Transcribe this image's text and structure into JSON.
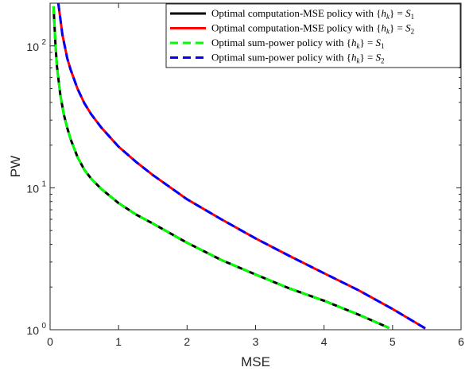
{
  "chart_data": {
    "type": "line",
    "xlabel": "MSE",
    "ylabel": "PW",
    "xlim": [
      0,
      6
    ],
    "ylim": [
      1,
      200
    ],
    "y_scale": "log",
    "grid": false,
    "legend_position": "top-right",
    "x_ticks": [
      0,
      1,
      2,
      3,
      4,
      5,
      6
    ],
    "x_tick_labels": [
      "0",
      "1",
      "2",
      "3",
      "4",
      "5",
      "6"
    ],
    "y_ticks": [
      1,
      10,
      100
    ],
    "y_tick_labels": [
      "10",
      "10",
      "10"
    ],
    "y_tick_exponents": [
      "0",
      "1",
      "2"
    ],
    "series": [
      {
        "name": "Optimal computation-MSE policy with {h_k} = S_1",
        "legend_prefix": "Optimal computation-MSE policy with {",
        "legend_var": "h",
        "legend_sub": "k",
        "legend_mid": "} = ",
        "legend_set": "S",
        "legend_set_sub": "1",
        "color": "#000000",
        "dash": "solid",
        "x": [
          0.05,
          0.08,
          0.1,
          0.15,
          0.2,
          0.25,
          0.3,
          0.4,
          0.5,
          0.6,
          0.75,
          1.0,
          1.25,
          1.5,
          2.0,
          2.5,
          3.0,
          3.5,
          4.0,
          4.5,
          4.95
        ],
        "y": [
          190,
          100,
          72,
          45,
          33,
          26.5,
          22,
          16.5,
          13.4,
          11.6,
          9.8,
          7.8,
          6.5,
          5.6,
          4.1,
          3.1,
          2.45,
          1.95,
          1.6,
          1.28,
          1.03
        ]
      },
      {
        "name": "Optimal computation-MSE policy with {h_k} = S_2",
        "legend_prefix": "Optimal computation-MSE policy with {",
        "legend_var": "h",
        "legend_sub": "k",
        "legend_mid": "} = ",
        "legend_set": "S",
        "legend_set_sub": "2",
        "color": "#ff0000",
        "dash": "solid",
        "x": [
          0.12,
          0.18,
          0.25,
          0.3,
          0.4,
          0.5,
          0.6,
          0.75,
          1.0,
          1.25,
          1.5,
          2.0,
          2.5,
          3.0,
          3.5,
          4.0,
          4.5,
          5.0,
          5.48
        ],
        "y": [
          200,
          120,
          82,
          68,
          50,
          39.5,
          33,
          26.5,
          19.5,
          15.3,
          12.3,
          8.3,
          6.0,
          4.4,
          3.3,
          2.5,
          1.9,
          1.4,
          1.02
        ]
      },
      {
        "name": "Optimal sum-power policy with {h_k} = S_1",
        "legend_prefix": "Optimal sum-power policy with {",
        "legend_var": "h",
        "legend_sub": "k",
        "legend_mid": "} = ",
        "legend_set": "S",
        "legend_set_sub": "1",
        "color": "#00ff00",
        "dash": "dashed",
        "x": [
          0.05,
          0.08,
          0.1,
          0.15,
          0.2,
          0.25,
          0.3,
          0.4,
          0.5,
          0.6,
          0.75,
          1.0,
          1.25,
          1.5,
          2.0,
          2.5,
          3.0,
          3.5,
          4.0,
          4.5,
          4.95
        ],
        "y": [
          190,
          100,
          72,
          45,
          33,
          26.5,
          22,
          16.5,
          13.4,
          11.6,
          9.8,
          7.8,
          6.5,
          5.6,
          4.1,
          3.1,
          2.45,
          1.95,
          1.6,
          1.28,
          1.03
        ]
      },
      {
        "name": "Optimal sum-power policy with {h_k} = S_2",
        "legend_prefix": "Optimal sum-power policy with {",
        "legend_var": "h",
        "legend_sub": "k",
        "legend_mid": "} = ",
        "legend_set": "S",
        "legend_set_sub": "2",
        "color": "#0000ff",
        "dash": "dashed",
        "x": [
          0.12,
          0.18,
          0.25,
          0.3,
          0.4,
          0.5,
          0.6,
          0.75,
          1.0,
          1.25,
          1.5,
          2.0,
          2.5,
          3.0,
          3.5,
          4.0,
          4.5,
          5.0,
          5.48
        ],
        "y": [
          200,
          120,
          82,
          68,
          50,
          39.5,
          33,
          26.5,
          19.5,
          15.3,
          12.3,
          8.3,
          6.0,
          4.4,
          3.3,
          2.5,
          1.9,
          1.4,
          1.02
        ]
      }
    ]
  }
}
